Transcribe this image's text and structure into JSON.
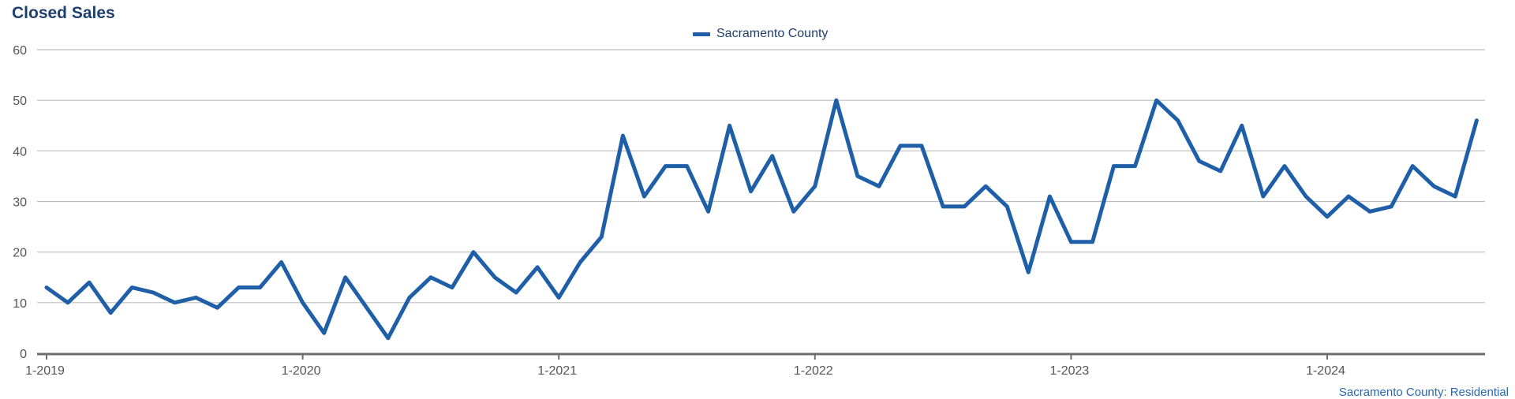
{
  "title": "Closed Sales",
  "footnote": "Sacramento County: Residential",
  "colors": {
    "series": "#1e5fa8",
    "title": "#1f3f6e",
    "grid": "#bdbdbd",
    "axis": "#555555",
    "footnote": "#2a67b0"
  },
  "chart_data": {
    "type": "line",
    "title": "Closed Sales",
    "xlabel": "",
    "ylabel": "",
    "ylim": [
      0,
      60
    ],
    "yticks": [
      "0",
      "10",
      "20",
      "30",
      "40",
      "50",
      "60"
    ],
    "xtick_labels": [
      "1-2019",
      "1-2020",
      "1-2021",
      "1-2022",
      "1-2023",
      "1-2024"
    ],
    "x_start": "2019-01",
    "grid": true,
    "legend_position": "top-center",
    "series": [
      {
        "name": "Sacramento County",
        "color": "#1e5fa8",
        "values": [
          13,
          10,
          14,
          8,
          13,
          12,
          10,
          11,
          9,
          13,
          13,
          18,
          10,
          4,
          15,
          9,
          3,
          11,
          15,
          13,
          20,
          15,
          12,
          17,
          11,
          18,
          23,
          43,
          31,
          37,
          37,
          28,
          45,
          32,
          39,
          28,
          33,
          50,
          35,
          33,
          41,
          41,
          29,
          29,
          33,
          29,
          16,
          31,
          22,
          22,
          37,
          37,
          50,
          46,
          38,
          36,
          45,
          31,
          37,
          31,
          27,
          31,
          28,
          29,
          37,
          33,
          31,
          46
        ]
      }
    ]
  }
}
